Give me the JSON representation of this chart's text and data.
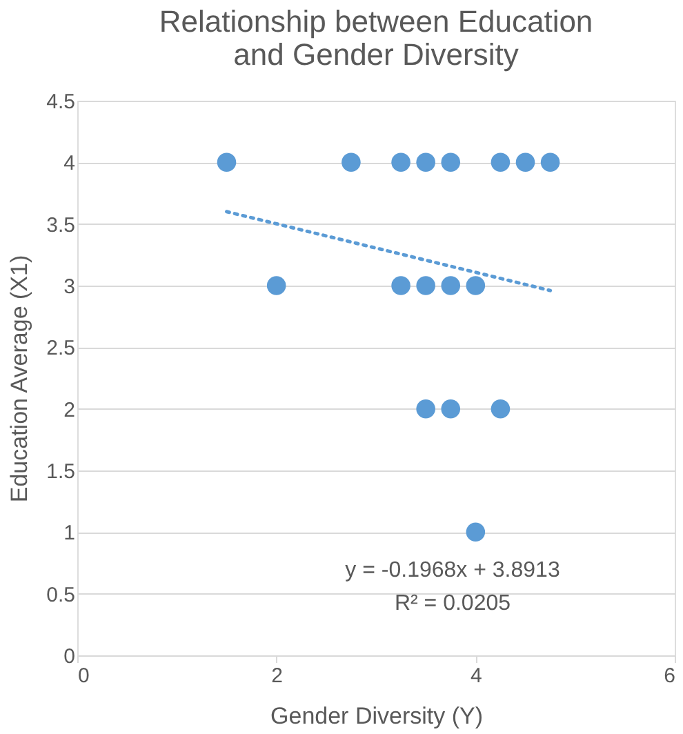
{
  "chart_data": {
    "type": "scatter",
    "title": "Relationship between Education and Gender Diversity",
    "xlabel": "Gender Diversity (Y)",
    "ylabel": "Education Average (X1)",
    "xlim": [
      0,
      6
    ],
    "xticks": [
      0,
      2,
      4,
      6
    ],
    "ylim": [
      0,
      4.5
    ],
    "yticks": [
      0,
      0.5,
      1,
      1.5,
      2,
      2.5,
      3,
      3.5,
      4,
      4.5
    ],
    "grid": "y",
    "marker": "circle",
    "series": [
      {
        "color": "#5b9bd5",
        "x": [
          1.5,
          2.75,
          3.25,
          3.5,
          3.75,
          4.25,
          4.5,
          4.75,
          2,
          3.25,
          3.5,
          3.75,
          4,
          3.5,
          3.75,
          4.25,
          4
        ],
        "values": [
          4,
          4,
          4,
          4,
          4,
          4,
          4,
          4,
          3,
          3,
          3,
          3,
          3,
          2,
          2,
          2,
          1
        ]
      },
      {
        "type": "line",
        "color": "#5b9bd5",
        "line_style": "dotted",
        "marker": "none",
        "x": [
          1.5,
          4.75
        ],
        "values": [
          3.6,
          2.96
        ]
      }
    ],
    "annotations": [
      "y = -0.1968x + 3.8913",
      "R² = 0.0205"
    ]
  }
}
